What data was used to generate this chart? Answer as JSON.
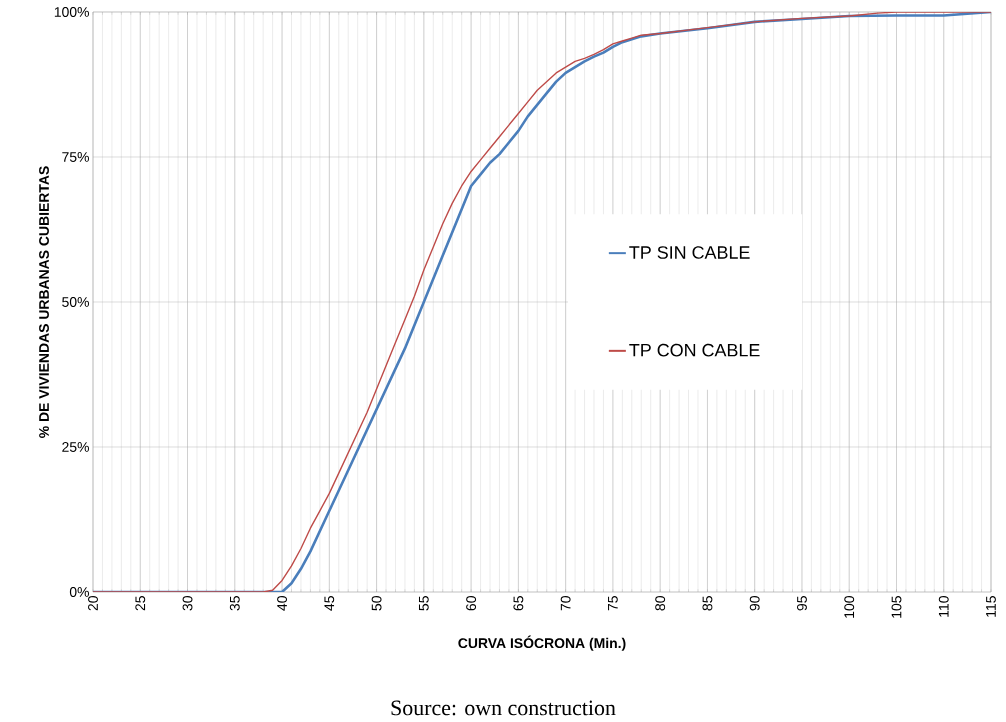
{
  "chart_data": {
    "type": "line",
    "xlabel": "CURVA ISÓCRONA (Min.)",
    "ylabel": "% DE VIVIENDAS URBANAS CUBIERTAS",
    "annotations": [
      "Source: own construction"
    ],
    "xlim": [
      20,
      115
    ],
    "xticks": [
      20,
      25,
      30,
      35,
      40,
      45,
      50,
      55,
      60,
      65,
      70,
      75,
      80,
      85,
      90,
      95,
      100,
      105,
      110,
      115
    ],
    "ylim": [
      0,
      100
    ],
    "yticks": [
      {
        "value": 0,
        "label": "0%"
      },
      {
        "value": 25,
        "label": "25%"
      },
      {
        "value": 50,
        "label": "50%"
      },
      {
        "value": 75,
        "label": "75%"
      },
      {
        "value": 100,
        "label": "100%"
      }
    ],
    "grid": true,
    "legend": "right",
    "marker": "none",
    "line_style": "solid",
    "series": [
      {
        "name": "TP SIN CABLE",
        "color": "#4a7ebb",
        "x": [
          20,
          39,
          40,
          41,
          42,
          43,
          44,
          45,
          46,
          47,
          48,
          49,
          50,
          51,
          52,
          53,
          54,
          55,
          56,
          57,
          58,
          59,
          60,
          61,
          62,
          63,
          64,
          65,
          66,
          67,
          68,
          69,
          70,
          71,
          72,
          73,
          74,
          75,
          76,
          77,
          78,
          80,
          85,
          90,
          95,
          100,
          105,
          110,
          115
        ],
        "values": [
          0,
          0,
          0,
          1.5,
          4,
          7,
          10.5,
          14,
          17.5,
          21,
          24.5,
          28,
          31.5,
          35,
          38.5,
          42,
          46,
          50,
          54,
          58,
          62,
          66,
          70,
          72,
          74,
          75.5,
          77.5,
          79.5,
          82,
          84,
          86,
          88,
          89.5,
          90.5,
          91.5,
          92.3,
          93,
          94,
          94.8,
          95.3,
          95.8,
          96.3,
          97.2,
          98.3,
          98.8,
          99.3,
          99.4,
          99.4,
          100
        ]
      },
      {
        "name": "TP CON CABLE",
        "color": "#be4b48",
        "x": [
          20,
          38,
          39,
          40,
          41,
          42,
          43,
          44,
          45,
          46,
          47,
          48,
          49,
          50,
          51,
          52,
          53,
          54,
          55,
          56,
          57,
          58,
          59,
          60,
          61,
          62,
          63,
          64,
          65,
          66,
          67,
          68,
          69,
          70,
          71,
          72,
          73,
          74,
          75,
          76,
          77,
          78,
          80,
          85,
          90,
          95,
          100,
          103,
          105,
          115
        ],
        "values": [
          0,
          0,
          0.3,
          2,
          4.5,
          7.5,
          11,
          14,
          17,
          20.5,
          24,
          27.5,
          31,
          35,
          39,
          43,
          47,
          51,
          55.5,
          59.5,
          63.5,
          67,
          70,
          72.5,
          74.5,
          76.5,
          78.5,
          80.5,
          82.5,
          84.5,
          86.5,
          88,
          89.5,
          90.5,
          91.5,
          92,
          92.7,
          93.5,
          94.5,
          95,
          95.5,
          96,
          96.3,
          97.3,
          98.3,
          98.9,
          99.3,
          99.8,
          100,
          100
        ]
      }
    ]
  }
}
